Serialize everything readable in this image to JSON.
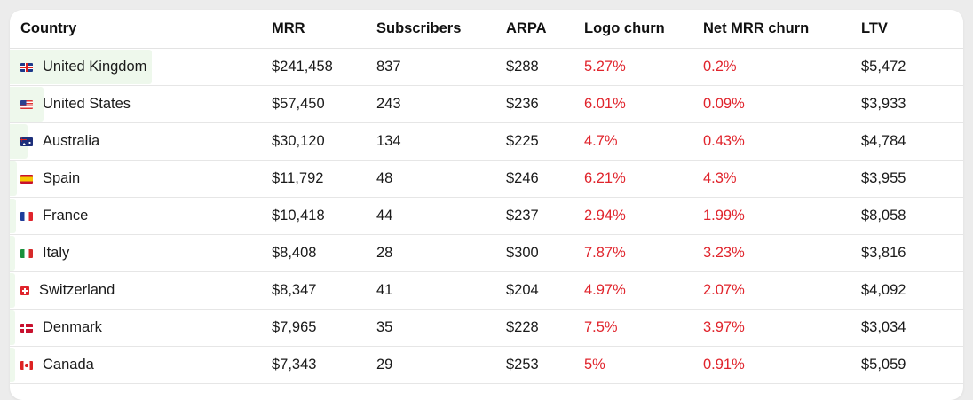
{
  "colors": {
    "churn_red": "#e0242c",
    "bar_green": "#eef8ec"
  },
  "headers": {
    "country": "Country",
    "mrr": "MRR",
    "subscribers": "Subscribers",
    "arpa": "ARPA",
    "logo_churn": "Logo churn",
    "net_mrr_churn": "Net MRR churn",
    "ltv": "LTV"
  },
  "rows": [
    {
      "flag": "uk-flag-icon",
      "country": "United Kingdom",
      "mrr": "$241,458",
      "subscribers": "837",
      "arpa": "$288",
      "logo_churn": "5.27%",
      "net_mrr_churn": "0.2%",
      "ltv": "$5,472",
      "mrr_share": 1.0
    },
    {
      "flag": "us-flag-icon",
      "country": "United States",
      "mrr": "$57,450",
      "subscribers": "243",
      "arpa": "$236",
      "logo_churn": "6.01%",
      "net_mrr_churn": "0.09%",
      "ltv": "$3,933",
      "mrr_share": 0.238
    },
    {
      "flag": "australia-flag-icon",
      "country": "Australia",
      "mrr": "$30,120",
      "subscribers": "134",
      "arpa": "$225",
      "logo_churn": "4.7%",
      "net_mrr_churn": "0.43%",
      "ltv": "$4,784",
      "mrr_share": 0.125
    },
    {
      "flag": "spain-flag-icon",
      "country": "Spain",
      "mrr": "$11,792",
      "subscribers": "48",
      "arpa": "$246",
      "logo_churn": "6.21%",
      "net_mrr_churn": "4.3%",
      "ltv": "$3,955",
      "mrr_share": 0.049
    },
    {
      "flag": "france-flag-icon",
      "country": "France",
      "mrr": "$10,418",
      "subscribers": "44",
      "arpa": "$237",
      "logo_churn": "2.94%",
      "net_mrr_churn": "1.99%",
      "ltv": "$8,058",
      "mrr_share": 0.043
    },
    {
      "flag": "italy-flag-icon",
      "country": "Italy",
      "mrr": "$8,408",
      "subscribers": "28",
      "arpa": "$300",
      "logo_churn": "7.87%",
      "net_mrr_churn": "3.23%",
      "ltv": "$3,816",
      "mrr_share": 0.035
    },
    {
      "flag": "switzerland-flag-icon",
      "country": "Switzerland",
      "mrr": "$8,347",
      "subscribers": "41",
      "arpa": "$204",
      "logo_churn": "4.97%",
      "net_mrr_churn": "2.07%",
      "ltv": "$4,092",
      "mrr_share": 0.035
    },
    {
      "flag": "denmark-flag-icon",
      "country": "Denmark",
      "mrr": "$7,965",
      "subscribers": "35",
      "arpa": "$228",
      "logo_churn": "7.5%",
      "net_mrr_churn": "3.97%",
      "ltv": "$3,034",
      "mrr_share": 0.033
    },
    {
      "flag": "canada-flag-icon",
      "country": "Canada",
      "mrr": "$7,343",
      "subscribers": "29",
      "arpa": "$253",
      "logo_churn": "5%",
      "net_mrr_churn": "0.91%",
      "ltv": "$5,059",
      "mrr_share": 0.03
    }
  ]
}
